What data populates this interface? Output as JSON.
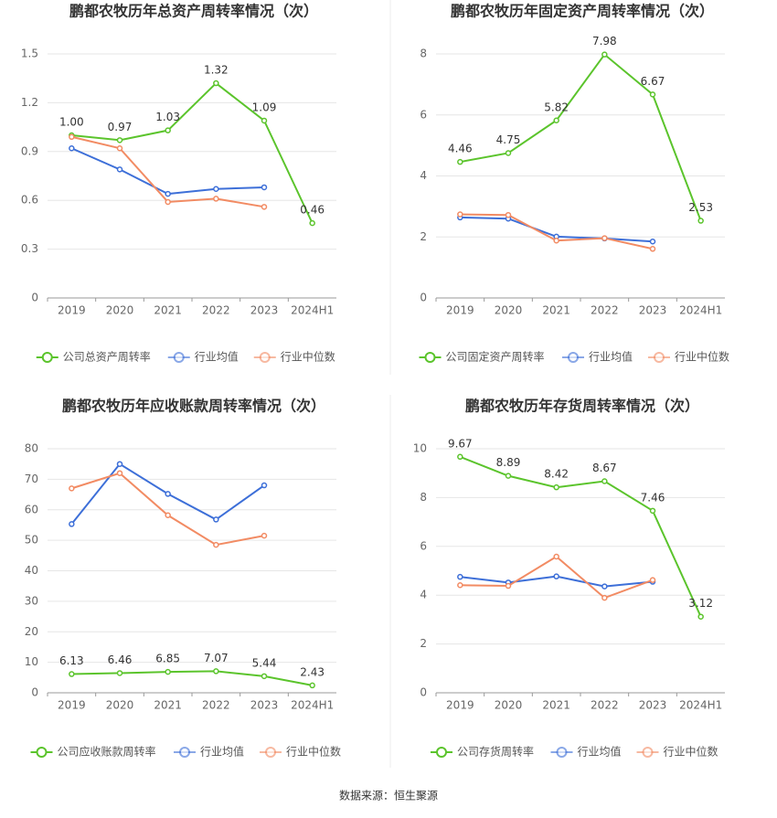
{
  "chart_data": [
    {
      "type": "line",
      "title": "鹏都农牧历年总资产周转率情况（次）",
      "categories": [
        "2019",
        "2020",
        "2021",
        "2022",
        "2023",
        "2024H1"
      ],
      "ylim": [
        0,
        1.5
      ],
      "yticks": [
        0,
        0.3,
        0.6,
        0.9,
        1.2,
        1.5
      ],
      "grid": true,
      "series": [
        {
          "name": "公司总资产周转率",
          "color": "#5bc42c",
          "labels": true,
          "values": [
            1,
            0.97,
            1.03,
            1.32,
            1.09,
            0.46
          ],
          "value_labels": [
            "1.00",
            "0.97",
            "1.03",
            "1.32",
            "1.09",
            "0.46"
          ]
        },
        {
          "name": "行业均值",
          "color": "#3d6fd8",
          "values": [
            0.92,
            0.79,
            0.64,
            0.67,
            0.68,
            null
          ]
        },
        {
          "name": "行业中位数",
          "color": "#f28b63",
          "values": [
            0.99,
            0.92,
            0.59,
            0.61,
            0.56,
            null
          ]
        }
      ]
    },
    {
      "type": "line",
      "title": "鹏都农牧历年固定资产周转率情况（次）",
      "categories": [
        "2019",
        "2020",
        "2021",
        "2022",
        "2023",
        "2024H1"
      ],
      "ylim": [
        0,
        8
      ],
      "yticks": [
        0,
        2,
        4,
        6,
        8
      ],
      "grid": true,
      "series": [
        {
          "name": "公司固定资产周转率",
          "color": "#5bc42c",
          "labels": true,
          "values": [
            4.46,
            4.75,
            5.82,
            7.98,
            6.67,
            2.53
          ]
        },
        {
          "name": "行业均值",
          "color": "#3d6fd8",
          "values": [
            2.64,
            2.6,
            2.01,
            1.95,
            1.85,
            null
          ]
        },
        {
          "name": "行业中位数",
          "color": "#f28b63",
          "values": [
            2.74,
            2.72,
            1.88,
            1.96,
            1.61,
            null
          ]
        }
      ]
    },
    {
      "type": "line",
      "title": "鹏都农牧历年应收账款周转率情况（次）",
      "categories": [
        "2019",
        "2020",
        "2021",
        "2022",
        "2023",
        "2024H1"
      ],
      "ylim": [
        0,
        80
      ],
      "yticks": [
        0,
        10,
        20,
        30,
        40,
        50,
        60,
        70,
        80
      ],
      "grid": true,
      "series": [
        {
          "name": "公司应收账款周转率",
          "color": "#5bc42c",
          "labels": true,
          "values": [
            6.13,
            6.46,
            6.85,
            7.07,
            5.44,
            2.43
          ]
        },
        {
          "name": "行业均值",
          "color": "#3d6fd8",
          "values": [
            55.3,
            75,
            65.2,
            56.8,
            68,
            null
          ]
        },
        {
          "name": "行业中位数",
          "color": "#f28b63",
          "values": [
            67,
            72,
            58.2,
            48.5,
            51.5,
            null
          ]
        }
      ]
    },
    {
      "type": "line",
      "title": "鹏都农牧历年存货周转率情况（次）",
      "categories": [
        "2019",
        "2020",
        "2021",
        "2022",
        "2023",
        "2024H1"
      ],
      "ylim": [
        0,
        10
      ],
      "yticks": [
        0,
        2,
        4,
        6,
        8,
        10
      ],
      "grid": true,
      "series": [
        {
          "name": "公司存货周转率",
          "color": "#5bc42c",
          "labels": true,
          "values": [
            9.67,
            8.89,
            8.42,
            8.67,
            7.46,
            3.12
          ]
        },
        {
          "name": "行业均值",
          "color": "#3d6fd8",
          "values": [
            4.75,
            4.52,
            4.77,
            4.36,
            4.55,
            null
          ]
        },
        {
          "name": "行业中位数",
          "color": "#f28b63",
          "values": [
            4.41,
            4.38,
            5.58,
            3.89,
            4.62,
            null
          ]
        }
      ]
    }
  ],
  "source": "数据来源：恒生聚源"
}
